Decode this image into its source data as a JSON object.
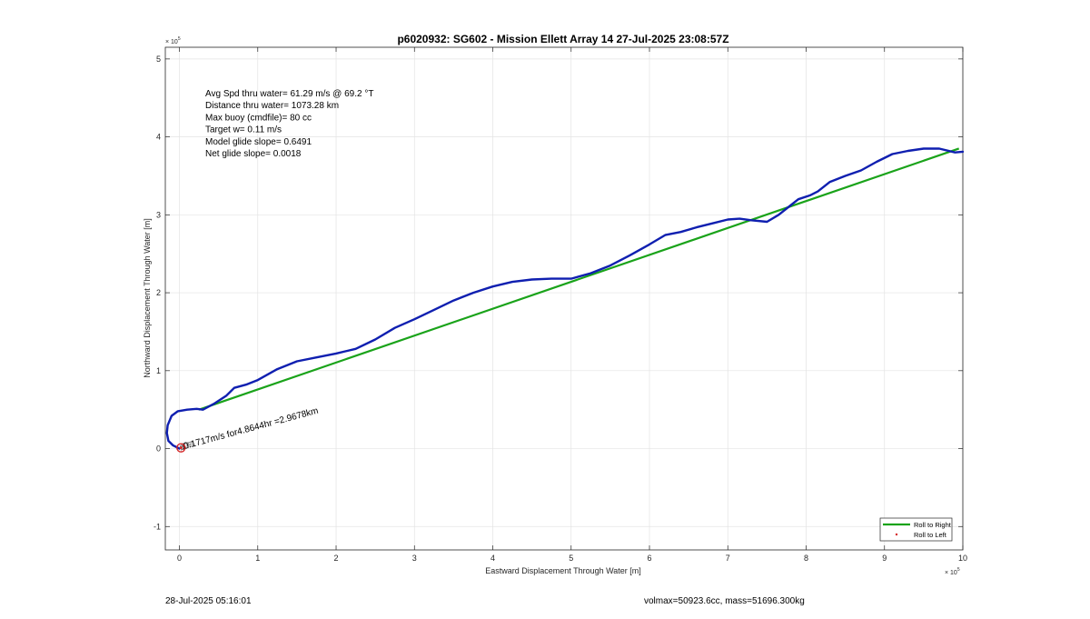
{
  "chart_data": {
    "type": "line",
    "title": "p6020932: SG602 - Mission Ellett Array 14 27-Jul-2025 23:08:57Z",
    "xlabel": "Eastward Displacement Through Water [m]",
    "ylabel": "Northward Displacement Through Water [m]",
    "xlim": [
      -0.18,
      10
    ],
    "ylim": [
      -1.3,
      5.15
    ],
    "x_ticks": [
      0,
      1,
      2,
      3,
      4,
      5,
      6,
      7,
      8,
      9,
      10
    ],
    "y_ticks": [
      -1,
      0,
      1,
      2,
      3,
      4,
      5
    ],
    "x_exponent": "× 10",
    "x_exponent_power": "5",
    "y_exponent": "× 10",
    "y_exponent_power": "5",
    "grid": true,
    "legend_placement": "bottom-right",
    "series": [
      {
        "name": "Roll to Right",
        "color": "#1aa31a",
        "x": [
          0.25,
          9.95
        ],
        "y": [
          0.5,
          3.85
        ]
      },
      {
        "name": "Roll to Left",
        "color": "#d62728",
        "x": [
          0.02
        ],
        "y": [
          0.01
        ]
      }
    ],
    "track": {
      "color": "#0f1fb0",
      "x": [
        0.0,
        -0.08,
        -0.14,
        -0.16,
        -0.15,
        -0.1,
        -0.02,
        0.1,
        0.22,
        0.3,
        0.45,
        0.6,
        0.7,
        0.85,
        1.0,
        1.25,
        1.5,
        1.75,
        2.0,
        2.25,
        2.5,
        2.75,
        3.0,
        3.25,
        3.5,
        3.75,
        4.0,
        4.25,
        4.5,
        4.75,
        5.0,
        5.25,
        5.5,
        5.75,
        6.0,
        6.2,
        6.4,
        6.6,
        6.8,
        7.0,
        7.15,
        7.3,
        7.5,
        7.65,
        7.8,
        7.9,
        8.05,
        8.15,
        8.3,
        8.5,
        8.7,
        8.9,
        9.1,
        9.3,
        9.5,
        9.7,
        9.9,
        10.0
      ],
      "y": [
        0.0,
        0.04,
        0.1,
        0.2,
        0.3,
        0.42,
        0.48,
        0.5,
        0.51,
        0.5,
        0.58,
        0.68,
        0.78,
        0.82,
        0.88,
        1.02,
        1.12,
        1.17,
        1.22,
        1.28,
        1.4,
        1.55,
        1.66,
        1.78,
        1.9,
        2.0,
        2.08,
        2.14,
        2.17,
        2.18,
        2.18,
        2.25,
        2.35,
        2.48,
        2.62,
        2.74,
        2.78,
        2.84,
        2.89,
        2.94,
        2.95,
        2.93,
        2.91,
        3.0,
        3.12,
        3.2,
        3.25,
        3.3,
        3.42,
        3.5,
        3.57,
        3.68,
        3.78,
        3.82,
        3.85,
        3.85,
        3.8,
        3.81
      ]
    },
    "annotations": [
      "Avg Spd thru water= 61.29 m/s @  69.2 °T",
      "Distance thru water= 1073.28 km",
      "Max buoy (cmdfile)= 80 cc",
      "Target w= 0.11 m/s",
      "Model glide slope= 0.6491",
      "Net glide slope= 0.0018"
    ],
    "current_annotation": "0.1717m/s for4.8644hr =2.9678km",
    "current_label_overlay": "1",
    "marker_overlay": "p6020932"
  },
  "footer": {
    "left": "28-Jul-2025 05:16:01",
    "right": "volmax=50923.6cc, mass=51696.300kg"
  }
}
